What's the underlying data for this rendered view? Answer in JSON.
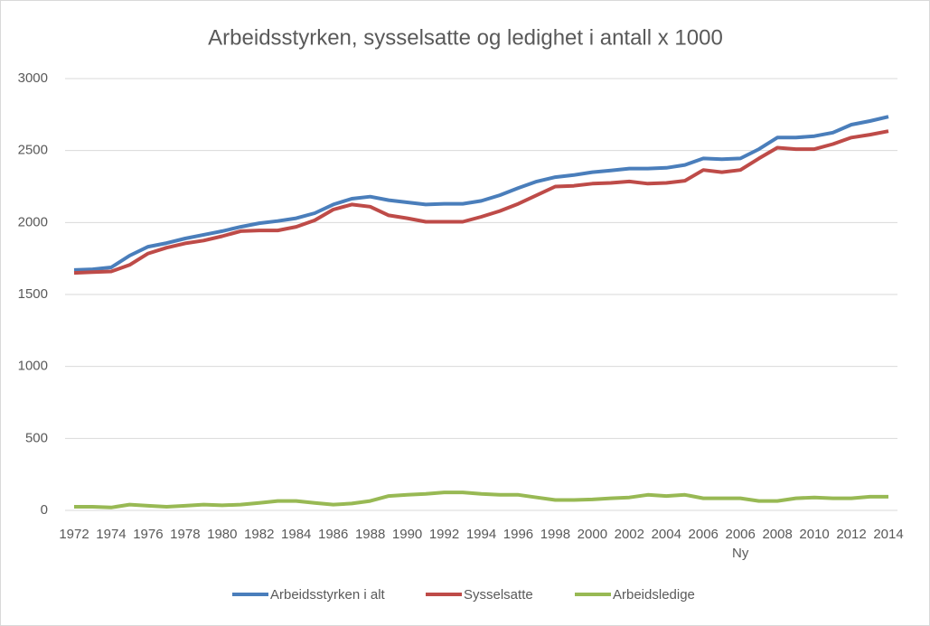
{
  "chart_data": {
    "type": "line",
    "title": "Arbeidsstyrken, sysselsatte og ledighet i antall x 1000",
    "categories": [
      "1972",
      null,
      "1974",
      null,
      "1976",
      null,
      "1978",
      null,
      "1980",
      null,
      "1982",
      null,
      "1984",
      null,
      "1986",
      null,
      "1988",
      null,
      "1990",
      null,
      "1992",
      null,
      "1994",
      null,
      "1996",
      null,
      "1998",
      null,
      "2000",
      null,
      "2002",
      null,
      "2004",
      null,
      "2006",
      null,
      "2006\nNy",
      null,
      "2008",
      null,
      "2010",
      null,
      "2012",
      null,
      "2014"
    ],
    "series": [
      {
        "name": "Arbeidsstyrken i alt",
        "color": "#4a7ebb",
        "values": [
          1670,
          1675,
          1688,
          1770,
          1832,
          1857,
          1889,
          1915,
          1940,
          1970,
          1995,
          2010,
          2030,
          2065,
          2125,
          2165,
          2180,
          2155,
          2140,
          2125,
          2130,
          2130,
          2150,
          2190,
          2240,
          2285,
          2315,
          2330,
          2350,
          2362,
          2375,
          2375,
          2380,
          2400,
          2445,
          2440,
          2445,
          2510,
          2590,
          2590,
          2600,
          2625,
          2680,
          2705,
          2735
        ]
      },
      {
        "name": "Sysselsatte",
        "color": "#be4b48",
        "values": [
          1650,
          1655,
          1660,
          1705,
          1785,
          1825,
          1855,
          1875,
          1905,
          1940,
          1945,
          1945,
          1970,
          2015,
          2090,
          2125,
          2110,
          2050,
          2030,
          2005,
          2005,
          2005,
          2040,
          2080,
          2130,
          2190,
          2250,
          2255,
          2270,
          2275,
          2285,
          2270,
          2275,
          2290,
          2365,
          2350,
          2365,
          2445,
          2520,
          2510,
          2510,
          2545,
          2590,
          2610,
          2635
        ]
      },
      {
        "name": "Arbeidsledige",
        "color": "#98b954",
        "values": [
          25,
          25,
          20,
          40,
          32,
          25,
          32,
          40,
          35,
          40,
          52,
          65,
          65,
          52,
          40,
          48,
          65,
          100,
          108,
          114,
          125,
          125,
          114,
          108,
          108,
          90,
          72,
          72,
          76,
          84,
          90,
          108,
          100,
          108,
          84,
          84,
          84,
          65,
          65,
          84,
          90,
          84,
          84,
          95,
          95
        ]
      }
    ],
    "ylim": [
      0,
      3000
    ],
    "yticks": [
      0,
      500,
      1000,
      1500,
      2000,
      2500,
      3000
    ],
    "grid": true,
    "legend": "bottom"
  }
}
